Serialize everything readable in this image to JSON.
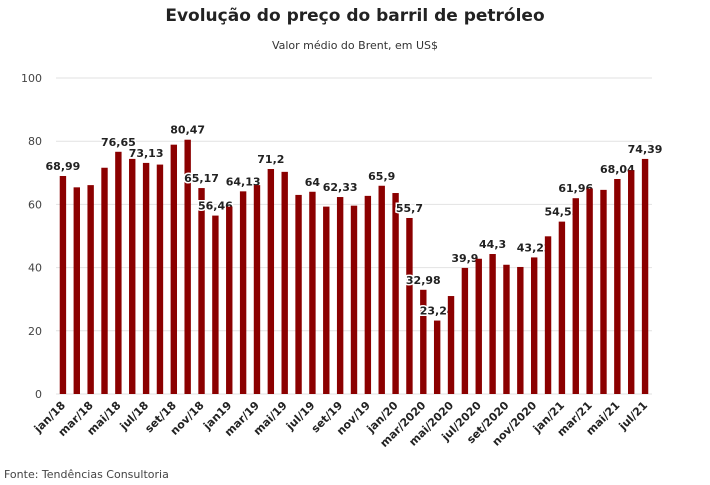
{
  "chart_data": {
    "type": "bar",
    "title": "Evolução do preço do barril de petróleo",
    "subtitle": "Valor médio do Brent, em US$",
    "source": "Fonte: Tendências Consultoria",
    "color": "#8b0000",
    "categories": [
      "jan/18",
      null,
      "mar/18",
      null,
      "mai/18",
      null,
      "jul/18",
      null,
      "set/18",
      null,
      "nov/18",
      null,
      "jan19",
      null,
      "mar/19",
      null,
      "mai/19",
      null,
      "jul/19",
      null,
      "set/19",
      null,
      "nov/19",
      null,
      "jan/20",
      null,
      "mar/2020",
      null,
      "mai/2020",
      null,
      "jul/2020",
      null,
      "set/2020",
      null,
      "nov/2020",
      null,
      "jan/21",
      null,
      "mar/21",
      null,
      "mai/21",
      null,
      "jul/21"
    ],
    "values": [
      68.99,
      65.4,
      66.1,
      71.6,
      76.65,
      74.4,
      73.13,
      72.6,
      78.9,
      80.47,
      65.17,
      56.46,
      59.3,
      64.13,
      66.1,
      71.2,
      70.3,
      63.0,
      64,
      59.3,
      62.33,
      59.6,
      62.7,
      65.9,
      63.6,
      55.7,
      32.98,
      23.24,
      31.0,
      39.9,
      42.8,
      44.3,
      40.9,
      40.2,
      43.22,
      49.9,
      54.55,
      61.96,
      65.0,
      64.6,
      68.04,
      70.8,
      74.39
    ],
    "value_labels": [
      "68,99",
      null,
      null,
      null,
      "76,65",
      null,
      "73,13",
      null,
      null,
      "80,47",
      "65,17",
      "56,46",
      null,
      "64,13",
      null,
      "71,2",
      null,
      null,
      "64",
      null,
      "62,33",
      null,
      null,
      "65,9",
      null,
      "55,7",
      "32,98",
      "23,24",
      null,
      "39,9",
      null,
      "44,3",
      null,
      null,
      "43,22",
      null,
      "54,55",
      "61,96",
      null,
      null,
      "68,04",
      null,
      "74,39"
    ],
    "ylim": [
      0,
      100
    ],
    "yticks": [
      0,
      20,
      40,
      60,
      80,
      100
    ],
    "grid": true
  }
}
